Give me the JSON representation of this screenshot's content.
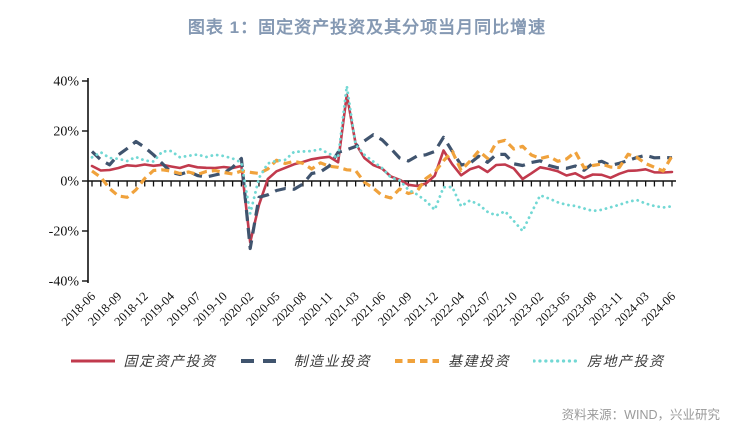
{
  "title": "图表 1：固定资产投资及其分项当月同比增速",
  "source": "资料来源：WIND，兴业研究",
  "colors": {
    "title": "#8599b3",
    "axis": "#111111",
    "source_text": "#9a9a9a",
    "fixed_asset": "#c13a4d",
    "manufacturing": "#40546e",
    "infrastructure": "#f0a23c",
    "real_estate": "#72d8d4"
  },
  "chart_data": {
    "type": "line",
    "title": "图表 1：固定资产投资及其分项当月同比增速",
    "ylabel": "",
    "xlabel": "",
    "ylim": [
      -40,
      40
    ],
    "y_tick_labels": [
      "40%",
      "20%",
      "0%",
      "-20%",
      "-40%"
    ],
    "y_tick_values": [
      40,
      20,
      0,
      -20,
      -40
    ],
    "x_tick_label_rotation": 45,
    "grid": false,
    "legend_position": "bottom",
    "x": [
      "2018-06",
      "2018-07",
      "2018-08",
      "2018-09",
      "2018-10",
      "2018-11",
      "2018-12",
      "2019-02",
      "2019-03",
      "2019-04",
      "2019-05",
      "2019-06",
      "2019-07",
      "2019-08",
      "2019-09",
      "2019-10",
      "2019-11",
      "2019-12",
      "2020-02",
      "2020-03",
      "2020-04",
      "2020-05",
      "2020-06",
      "2020-07",
      "2020-08",
      "2020-09",
      "2020-10",
      "2020-11",
      "2020-12",
      "2021-02",
      "2021-03",
      "2021-04",
      "2021-05",
      "2021-06",
      "2021-07",
      "2021-08",
      "2021-09",
      "2021-10",
      "2021-11",
      "2021-12",
      "2022-02",
      "2022-03",
      "2022-04",
      "2022-05",
      "2022-06",
      "2022-07",
      "2022-08",
      "2022-09",
      "2022-10",
      "2022-11",
      "2022-12",
      "2023-02",
      "2023-03",
      "2023-04",
      "2023-05",
      "2023-06",
      "2023-07",
      "2023-08",
      "2023-09",
      "2023-10",
      "2023-11",
      "2023-12",
      "2024-02",
      "2024-03",
      "2024-04",
      "2024-05",
      "2024-06"
    ],
    "x_shown_tick_labels": [
      "2018-06",
      "2018-09",
      "2018-12",
      "2019-04",
      "2019-07",
      "2019-10",
      "2020-02",
      "2020-05",
      "2020-08",
      "2020-11",
      "2021-03",
      "2021-06",
      "2021-09",
      "2021-12",
      "2022-04",
      "2022-07",
      "2022-10",
      "2023-02",
      "2023-05",
      "2023-08",
      "2023-11",
      "2024-03",
      "2024-06"
    ],
    "x_label_every": 3,
    "series": [
      {
        "name": "固定资产投资",
        "color": "#c13a4d",
        "style": "solid",
        "values": [
          6.0,
          4.2,
          4.4,
          5.2,
          6.3,
          6.0,
          6.6,
          6.1,
          6.5,
          5.8,
          5.2,
          6.3,
          5.5,
          5.3,
          5.2,
          5.6,
          5.2,
          6.0,
          -24.5,
          -9.5,
          0.8,
          3.9,
          5.3,
          6.7,
          7.6,
          8.7,
          9.3,
          9.7,
          7.5,
          34.5,
          15.0,
          9.2,
          6.4,
          5.0,
          1.8,
          0.5,
          -1.5,
          -2.0,
          -1.0,
          2.1,
          12.2,
          6.7,
          2.3,
          4.7,
          5.8,
          3.6,
          6.4,
          6.6,
          5.0,
          0.8,
          3.1,
          5.5,
          4.8,
          3.9,
          2.2,
          3.1,
          1.2,
          2.6,
          2.5,
          1.3,
          2.9,
          4.1,
          4.2,
          4.7,
          3.5,
          3.4,
          3.6
        ]
      },
      {
        "name": "制造业投资",
        "color": "#40546e",
        "style": "long-dash",
        "values": [
          11.8,
          8.5,
          6.5,
          10.5,
          13.0,
          15.8,
          13.5,
          10.5,
          7.0,
          3.5,
          2.6,
          3.8,
          2.2,
          1.6,
          2.4,
          3.2,
          5.5,
          9.0,
          -27.0,
          -6.5,
          -5.5,
          -3.8,
          -3.0,
          -3.3,
          -1.2,
          3.0,
          3.7,
          6.0,
          11.5,
          12.5,
          13.8,
          16.0,
          18.5,
          16.5,
          13.0,
          9.2,
          8.0,
          10.0,
          10.5,
          11.8,
          17.5,
          11.9,
          6.4,
          7.1,
          9.9,
          7.5,
          10.6,
          10.7,
          6.9,
          6.2,
          7.4,
          8.1,
          6.2,
          5.3,
          5.1,
          6.0,
          4.3,
          7.1,
          7.9,
          6.2,
          7.1,
          8.2,
          9.4,
          10.3,
          9.3,
          9.4,
          9.3
        ]
      },
      {
        "name": "基建投资",
        "color": "#f0a23c",
        "style": "dash",
        "values": [
          4.0,
          1.5,
          -3.0,
          -6.0,
          -6.5,
          -3.5,
          1.0,
          4.2,
          4.5,
          4.0,
          3.0,
          3.6,
          2.6,
          3.8,
          4.2,
          3.4,
          2.8,
          4.0,
          3.5,
          3.0,
          4.8,
          8.3,
          7.0,
          7.9,
          7.1,
          4.8,
          7.3,
          5.9,
          5.5,
          4.5,
          4.2,
          -0.5,
          -2.8,
          -5.8,
          -6.8,
          -3.2,
          -5.0,
          -4.0,
          1.0,
          3.5,
          8.1,
          11.8,
          4.3,
          7.9,
          12.0,
          9.1,
          15.4,
          16.3,
          12.8,
          13.9,
          10.4,
          9.0,
          9.9,
          7.9,
          8.8,
          11.7,
          5.3,
          6.2,
          6.8,
          5.6,
          5.4,
          10.7,
          9.5,
          7.0,
          5.5,
          4.0,
          10.0
        ]
      },
      {
        "name": "房地产投资",
        "color": "#72d8d4",
        "style": "dot",
        "values": [
          9.5,
          11.5,
          9.2,
          8.9,
          8.0,
          9.6,
          8.2,
          7.8,
          11.8,
          12.0,
          9.5,
          10.1,
          10.6,
          9.6,
          10.5,
          10.0,
          9.0,
          7.4,
          -13.0,
          1.2,
          7.0,
          8.1,
          8.5,
          11.7,
          11.8,
          12.0,
          12.7,
          10.9,
          9.3,
          38.0,
          14.5,
          10.5,
          7.8,
          5.2,
          1.4,
          0.3,
          -3.5,
          -5.4,
          -8.0,
          -11.5,
          -2.5,
          -2.4,
          -10.1,
          -7.8,
          -9.4,
          -12.3,
          -13.8,
          -12.1,
          -16.0,
          -20.0,
          -12.7,
          -5.7,
          -7.0,
          -8.5,
          -9.5,
          -10.0,
          -11.0,
          -12.0,
          -11.5,
          -10.5,
          -9.5,
          -8.3,
          -7.6,
          -9.0,
          -10.0,
          -10.6,
          -10.1
        ]
      }
    ]
  }
}
